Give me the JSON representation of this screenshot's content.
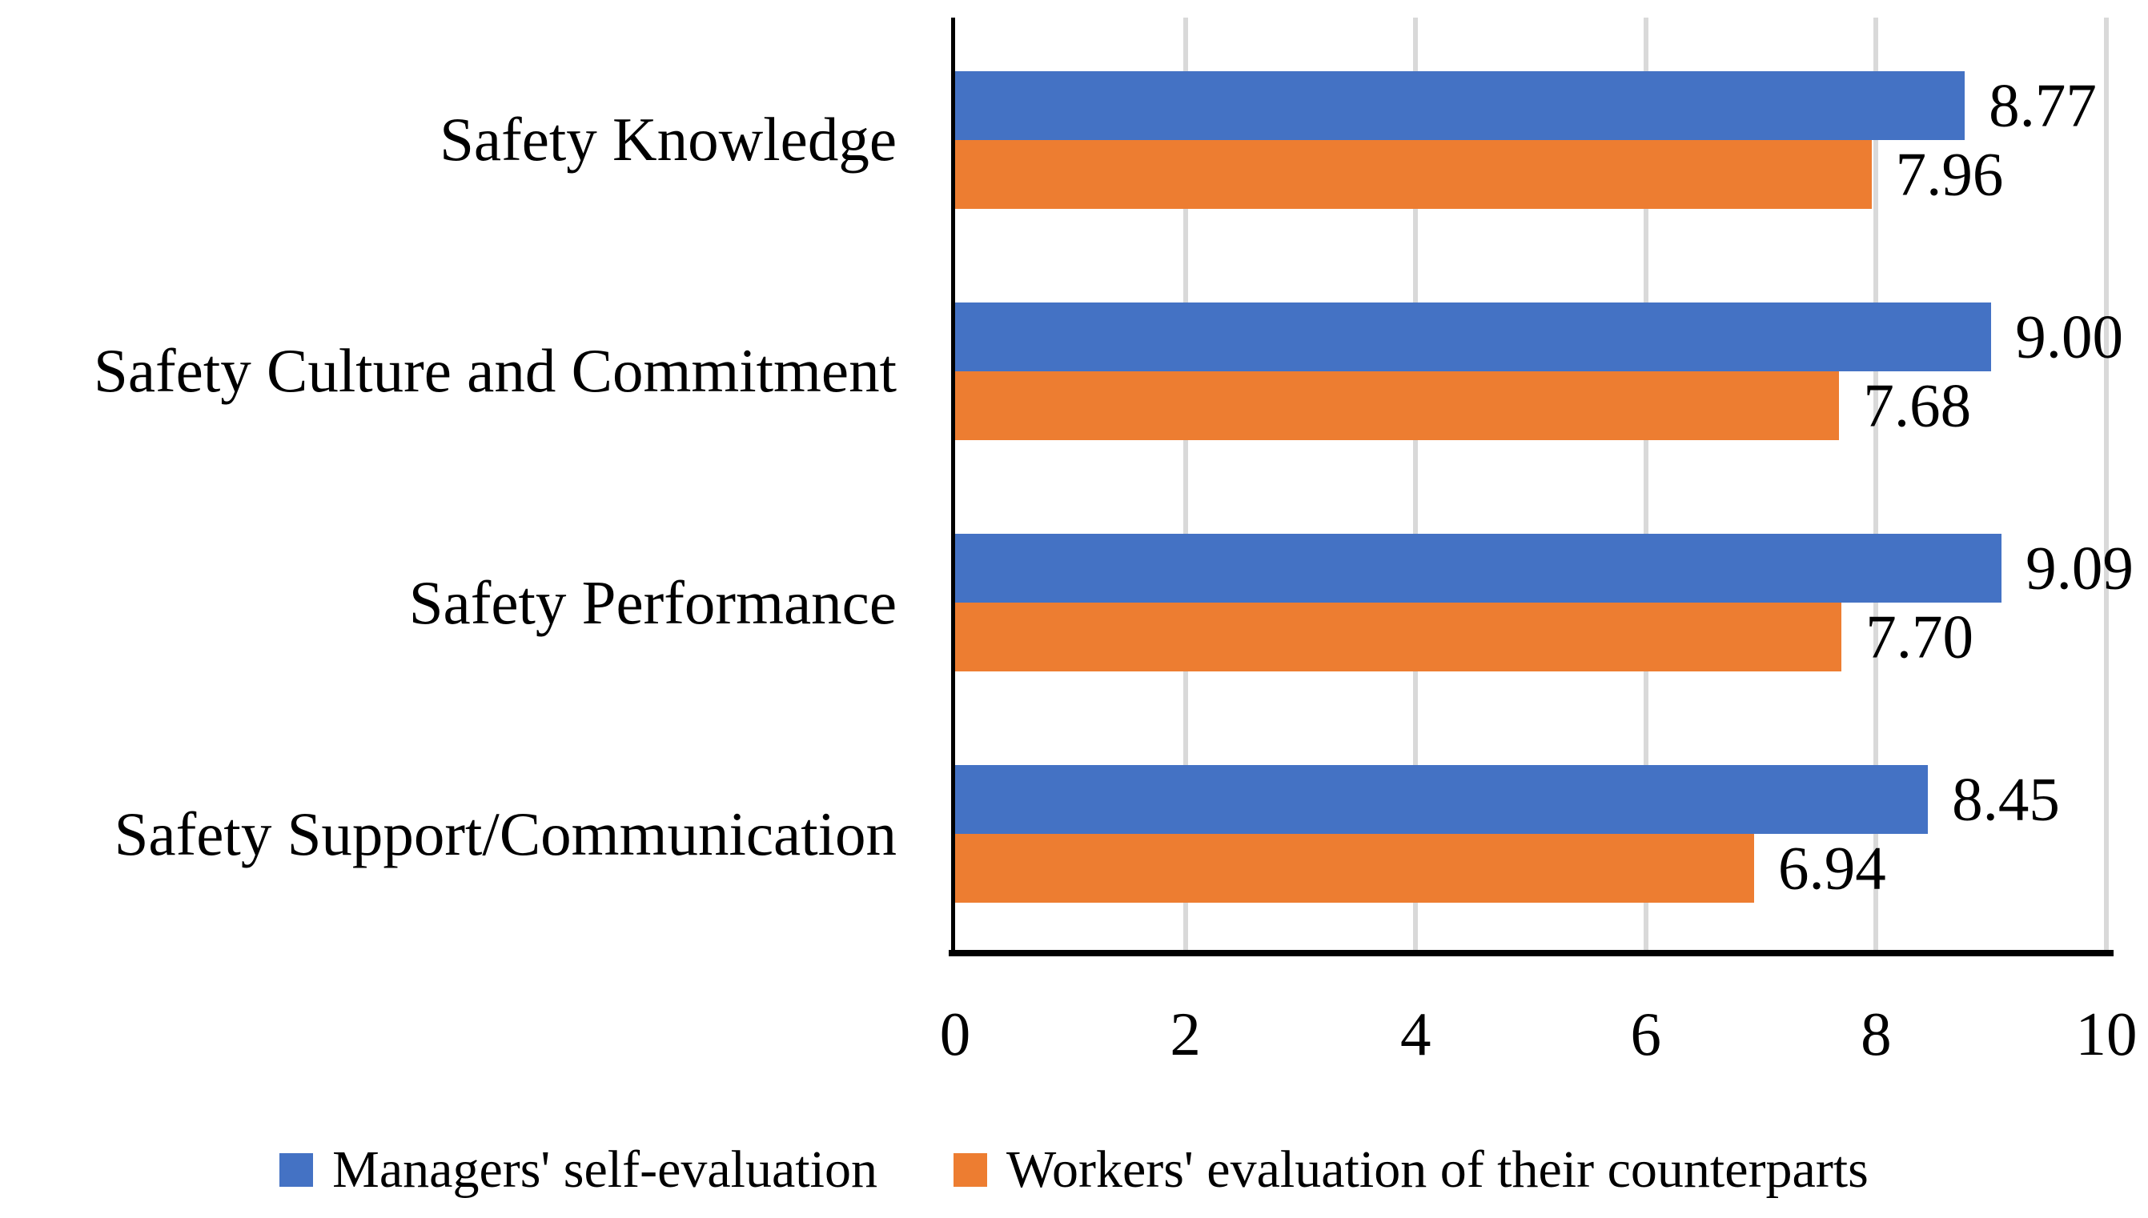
{
  "chart_data": {
    "type": "bar",
    "orientation": "horizontal",
    "title": "",
    "xlabel": "",
    "ylabel": "",
    "categories": [
      "Safety Knowledge",
      "Safety Culture and Commitment",
      "Safety Performance",
      "Safety Support/Communication"
    ],
    "series": [
      {
        "name": "Managers' self-evaluation",
        "slug": "managers-self-evaluation",
        "color": "#4472C4",
        "values": [
          8.77,
          9.0,
          9.09,
          8.45
        ],
        "value_labels": [
          "8.77",
          "9.00",
          "9.09",
          "8.45"
        ]
      },
      {
        "name": "Workers' evaluation of their counterparts",
        "slug": "workers-evaluation-of-counterparts",
        "color": "#ED7D31",
        "values": [
          7.96,
          7.68,
          7.7,
          6.94
        ],
        "value_labels": [
          "7.96",
          "7.68",
          "7.70",
          "6.94"
        ]
      }
    ],
    "xlim": [
      0,
      10
    ],
    "x_ticks": [
      "0",
      "2",
      "4",
      "6",
      "8",
      "10"
    ],
    "gridline_values": [
      2,
      4,
      6,
      8,
      10
    ],
    "grid": true,
    "legend_position": "bottom",
    "colors": {
      "axis": "#000000",
      "gridline": "#D9D9D9",
      "background": "#FFFFFF",
      "text": "#000000"
    }
  }
}
